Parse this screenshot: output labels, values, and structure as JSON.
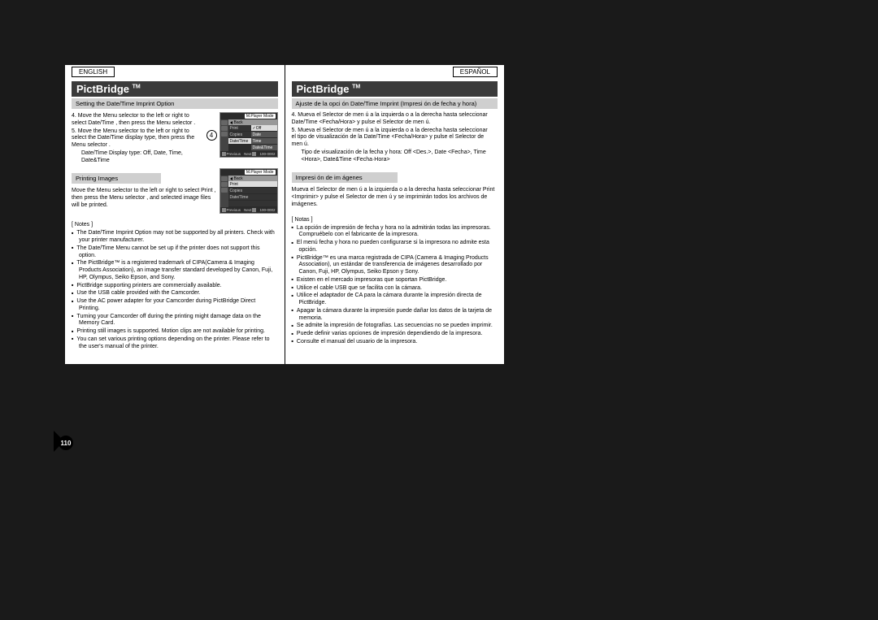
{
  "page_number": "110",
  "left": {
    "lang": "ENGLISH",
    "title": "PictBridge",
    "tm": "TM",
    "sub1": "Setting the Date/Time Imprint Option",
    "step4": "4. Move the Menu selector   to the left or right to select Date/Time , then press the Menu selector .",
    "step5": "5. Move the Menu selector   to the left or right to select the Date/Time  display type, then press the Menu selector .",
    "step5b": "Date/Time Display type: Off, Date, Time, Date&Time",
    "sub2": "Printing Images",
    "print_para": "Move the Menu selector   to the left or right to select Print , then press the Menu selector , and selected image files will be printed.",
    "notes_header": "[ Notes ]",
    "notes": [
      "The Date/Time Imprint Option may not be supported by all printers. Check with your printer manufacturer.",
      "The Date/Time Menu cannot be set up if the printer does not support this option.",
      "The PictBridge™ is a registered trademark of CIPA(Camera & Imaging Products Association), an image transfer standard developed by Canon, Fuji, HP, Olympus, Seiko Epson, and Sony.",
      "PictBridge supporting printers are commercially available.",
      "Use the USB cable provided with the Camcorder.",
      "Use the AC power adapter for your Camcorder during PictBridge Direct Printing.",
      "Turning your Camcorder off during the printing might damage data on the Memory Card.",
      "Printing still images is supported. Motion clips are not available for printing.",
      "You can set various printing options depending on the printer. Please refer to the user's manual of the printer."
    ]
  },
  "right": {
    "lang": "ESPAÑOL",
    "title": "PictBridge",
    "tm": "TM",
    "sub1": "Ajuste de la opci ón Date/Time Imprint (Impresi ón de fecha y hora)",
    "step4": "4. Mueva el Selector de men ú a la izquierda o a la derecha hasta seleccionar Date/Time <Fecha/Hora>  y pulse el Selector de men ú.",
    "step5": "5. Mueva el Selector de men ú a la izquierda o a la derecha hasta seleccionar el tipo de visualización de la Date/Time <Fecha/Hora>  y pulse el Selector de men ú.",
    "step5b": "Tipo de visualización de la fecha y hora: Off <Des.>, Date <Fecha>, Time <Hora>, Date&Time <Fecha·Hora>",
    "sub2": "Impresi ón de im ágenes",
    "print_para": "Mueva el Selector de men ú a la izquierda o a la derecha hasta seleccionar Print <Imprimir>  y pulse el Selector de men ú y se imprimirán todos los archivos de imágenes.",
    "notes_header": "[ Notas ]",
    "notes": [
      "La opción de impresión de fecha y hora no la admitirán todas las impresoras. Compruébelo con el fabricante de la impresora.",
      "El menú fecha y hora no pueden configurarse si la impresora no admite esta opción.",
      "PictBridge™ es una marca registrada de CIPA (Camera & Imaging Products Association), un estándar de transferencia de imágenes desarrollado por Canon, Fuji, HP, Olympus, Seiko Epson y Sony.",
      "Existen en el mercado impresoras que soportan PictBridge.",
      "Utilice el cable USB que se facilita con la cámara.",
      "Utilice el adaptador de CA para la cámara durante la impresión directa de PictBridge.",
      "Apagar la cámara durante la impresión puede dañar los datos de la tarjeta de memoria.",
      "Se admite la impresión de fotografías. Las secuencias no se pueden imprimir.",
      "Puede definir varias opciones de impresión dependiendo de la impresora.",
      "Consulte el manual del usuario de la impresora."
    ]
  },
  "screen1": {
    "mode": "M.Player Mode",
    "back": "Back",
    "items": [
      "Print",
      "Copies",
      "Date/Time"
    ],
    "sub_items": [
      "Off",
      "Date",
      "Time",
      "Date&Time"
    ],
    "prev": "Previous",
    "next": "Next",
    "counter": "100-0002"
  },
  "screen2": {
    "mode": "M.Player Mode",
    "back": "Back",
    "items": [
      "Print",
      "Copies",
      "Date/Time"
    ],
    "prev": "Previous",
    "next": "Next",
    "counter": "100-0002"
  },
  "circle_num": "4"
}
